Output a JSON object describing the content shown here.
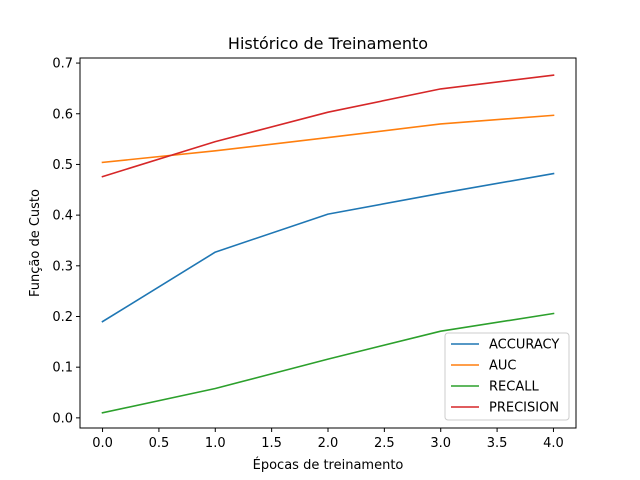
{
  "chart_data": {
    "type": "line",
    "title": "Histórico de Treinamento",
    "xlabel": "Épocas de treinamento",
    "ylabel": "Função de Custo",
    "x": [
      0,
      1,
      2,
      3,
      4
    ],
    "xlim": [
      -0.2,
      4.2
    ],
    "ylim": [
      -0.02,
      0.71
    ],
    "xticks": [
      "0.0",
      "0.5",
      "1.0",
      "1.5",
      "2.0",
      "2.5",
      "3.0",
      "3.5",
      "4.0"
    ],
    "yticks": [
      "0.0",
      "0.1",
      "0.2",
      "0.3",
      "0.4",
      "0.5",
      "0.6",
      "0.7"
    ],
    "grid": false,
    "legend_position": "bottom-right",
    "series": [
      {
        "name": "ACCURACY",
        "color": "#1f77b4",
        "values": [
          0.19,
          0.327,
          0.402,
          0.443,
          0.482
        ]
      },
      {
        "name": "AUC",
        "color": "#ff7f0e",
        "values": [
          0.504,
          0.527,
          0.553,
          0.58,
          0.597
        ]
      },
      {
        "name": "RECALL",
        "color": "#2ca02c",
        "values": [
          0.01,
          0.058,
          0.116,
          0.171,
          0.206
        ]
      },
      {
        "name": "PRECISION",
        "color": "#d62728",
        "values": [
          0.476,
          0.545,
          0.603,
          0.649,
          0.676
        ]
      }
    ]
  }
}
